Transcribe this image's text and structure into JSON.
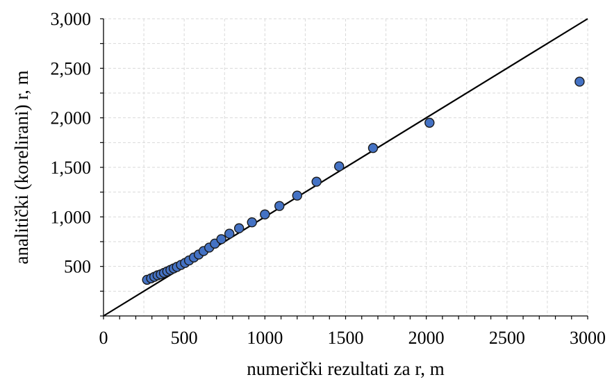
{
  "chart_data": {
    "type": "scatter",
    "title": "",
    "xlabel": "numerički rezultati za r, m",
    "ylabel": "analitički (korelirani) r, m",
    "xlim": [
      0,
      3000
    ],
    "ylim": [
      0,
      3000
    ],
    "x_ticks": [
      0,
      500,
      1000,
      1500,
      2000,
      2500,
      3000
    ],
    "x_tick_labels": [
      "0",
      "500",
      "1000",
      "1500",
      "2000",
      "2500",
      "3000"
    ],
    "y_ticks": [
      500,
      1000,
      1500,
      2000,
      2500,
      3000
    ],
    "y_tick_labels": [
      "500",
      "1,000",
      "1,500",
      "2,000",
      "2,500",
      "3,000"
    ],
    "grid": true,
    "legend": "none",
    "marker_color": "#4472c4",
    "reference_line": {
      "x": [
        0,
        3000
      ],
      "y": [
        0,
        3000
      ]
    },
    "points": {
      "x": [
        270,
        295,
        315,
        335,
        355,
        375,
        395,
        415,
        435,
        455,
        480,
        505,
        530,
        560,
        590,
        620,
        655,
        690,
        730,
        780,
        840,
        920,
        1000,
        1090,
        1200,
        1320,
        1460,
        1670,
        2020,
        2950
      ],
      "y": [
        365,
        380,
        395,
        410,
        420,
        435,
        450,
        465,
        480,
        495,
        515,
        535,
        560,
        590,
        620,
        655,
        690,
        730,
        775,
        830,
        885,
        945,
        1025,
        1110,
        1215,
        1355,
        1510,
        1695,
        1950,
        2365
      ]
    }
  }
}
